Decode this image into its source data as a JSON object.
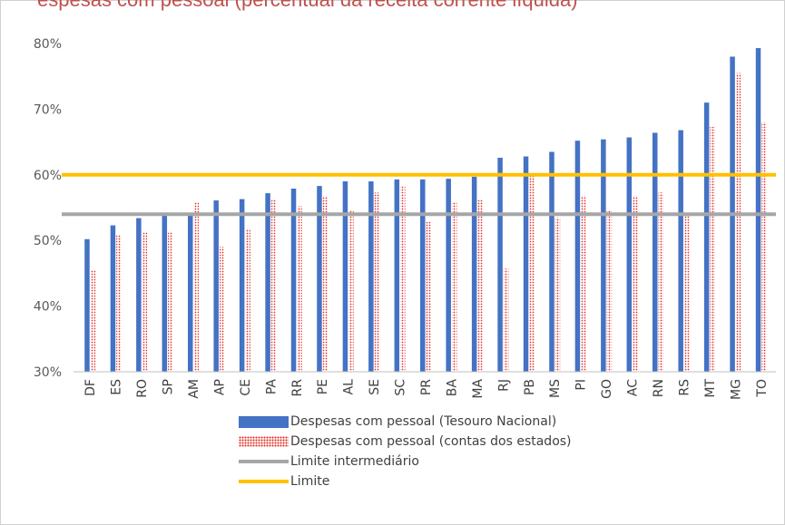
{
  "chart_data": {
    "type": "bar",
    "title": "",
    "xlabel": "",
    "ylabel": "",
    "ylim": [
      30,
      80
    ],
    "yticks": [
      30,
      40,
      50,
      60,
      70,
      80
    ],
    "ytick_labels": [
      "30%",
      "40%",
      "50%",
      "60%",
      "70%",
      "80%"
    ],
    "grid": false,
    "legend_position": "bottom",
    "categories": [
      "DF",
      "ES",
      "RO",
      "SP",
      "AM",
      "AP",
      "CE",
      "PA",
      "RR",
      "PE",
      "AL",
      "SE",
      "SC",
      "PR",
      "BA",
      "MA",
      "RJ",
      "PB",
      "MS",
      "PI",
      "GO",
      "AC",
      "RN",
      "RS",
      "MT",
      "MG",
      "TO"
    ],
    "series": [
      {
        "name": "Despesas com pessoal (Tesouro Nacional)",
        "style": "solid",
        "color": "#4472c4",
        "values": [
          50.2,
          52.3,
          53.4,
          53.9,
          54.0,
          56.1,
          56.3,
          57.2,
          57.9,
          58.3,
          59.0,
          59.0,
          59.3,
          59.3,
          59.4,
          59.7,
          62.6,
          62.8,
          63.5,
          65.2,
          65.4,
          65.7,
          66.4,
          66.8,
          71.0,
          78.0,
          79.3
        ]
      },
      {
        "name": "Despesas com pessoal (contas dos estados)",
        "style": "dotted",
        "color": "#e0302a",
        "values": [
          45.5,
          50.8,
          51.2,
          51.3,
          55.9,
          49.0,
          51.8,
          56.2,
          55.2,
          56.8,
          54.5,
          57.3,
          58.2,
          52.8,
          55.8,
          56.2,
          45.7,
          59.8,
          53.5,
          56.8,
          54.5,
          56.8,
          57.3,
          53.7,
          67.3,
          75.5,
          68.0
        ]
      }
    ],
    "lines": [
      {
        "name": "Limite intermediário",
        "value": 54,
        "color": "#a6a6a6"
      },
      {
        "name": "Limite",
        "value": 60,
        "color": "#ffc000"
      }
    ]
  },
  "title_fragment": "espesas com pessoal (percentual da receita corrente líquida)"
}
